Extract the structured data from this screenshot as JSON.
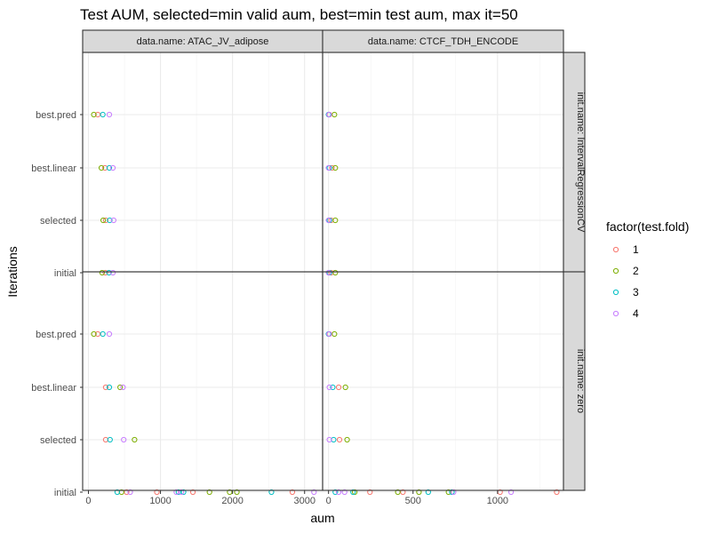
{
  "chart_data": {
    "type": "scatter",
    "title": "Test AUM, selected=min valid aum, best=min test aum, max it=50",
    "xlabel": "aum",
    "ylabel": "Iterations",
    "y_categories": [
      "initial",
      "selected",
      "best.linear",
      "best.pred"
    ],
    "facet_columns": [
      "data.name: ATAC_JV_adipose",
      "data.name: CTCF_TDH_ENCODE"
    ],
    "facet_rows": [
      "init.name: IntervalRegressionCV",
      "init.name: zero"
    ],
    "x_ticks": [
      {
        "values": [
          0,
          1000,
          2000,
          3000
        ],
        "labels": [
          "0",
          "1000",
          "2000",
          "3000"
        ],
        "xlim": [
          -80,
          3250
        ]
      },
      {
        "values": [
          0,
          500,
          1000
        ],
        "labels": [
          "0",
          "500",
          "1000"
        ],
        "xlim": [
          -35,
          1390
        ]
      }
    ],
    "grid": true,
    "legend": {
      "title": "factor(test.fold)",
      "position": "right",
      "entries": [
        {
          "label": "1",
          "color": "#F8766D"
        },
        {
          "label": "2",
          "color": "#7CAE00"
        },
        {
          "label": "3",
          "color": "#00BFC4"
        },
        {
          "label": "4",
          "color": "#C77CFF"
        }
      ]
    },
    "panels": [
      {
        "col": 0,
        "row": 0,
        "points": [
          {
            "fold": 1,
            "iteration": "best.pred",
            "aum": 130
          },
          {
            "fold": 2,
            "iteration": "best.pred",
            "aum": 75
          },
          {
            "fold": 3,
            "iteration": "best.pred",
            "aum": 200
          },
          {
            "fold": 4,
            "iteration": "best.pred",
            "aum": 290
          },
          {
            "fold": 1,
            "iteration": "best.linear",
            "aum": 230
          },
          {
            "fold": 2,
            "iteration": "best.linear",
            "aum": 180
          },
          {
            "fold": 3,
            "iteration": "best.linear",
            "aum": 290
          },
          {
            "fold": 4,
            "iteration": "best.linear",
            "aum": 340
          },
          {
            "fold": 1,
            "iteration": "selected",
            "aum": 240
          },
          {
            "fold": 2,
            "iteration": "selected",
            "aum": 205
          },
          {
            "fold": 3,
            "iteration": "selected",
            "aum": 295
          },
          {
            "fold": 4,
            "iteration": "selected",
            "aum": 350
          },
          {
            "fold": 1,
            "iteration": "initial",
            "aum": 235
          },
          {
            "fold": 2,
            "iteration": "initial",
            "aum": 190
          },
          {
            "fold": 3,
            "iteration": "initial",
            "aum": 285
          },
          {
            "fold": 4,
            "iteration": "initial",
            "aum": 340
          }
        ]
      },
      {
        "col": 1,
        "row": 0,
        "points": [
          {
            "fold": 1,
            "iteration": "best.pred",
            "aum": 5
          },
          {
            "fold": 2,
            "iteration": "best.pred",
            "aum": 35
          },
          {
            "fold": 3,
            "iteration": "best.pred",
            "aum": 0
          },
          {
            "fold": 4,
            "iteration": "best.pred",
            "aum": 3
          },
          {
            "fold": 1,
            "iteration": "best.linear",
            "aum": 20
          },
          {
            "fold": 2,
            "iteration": "best.linear",
            "aum": 40
          },
          {
            "fold": 3,
            "iteration": "best.linear",
            "aum": 5
          },
          {
            "fold": 4,
            "iteration": "best.linear",
            "aum": 0
          },
          {
            "fold": 1,
            "iteration": "selected",
            "aum": 15
          },
          {
            "fold": 2,
            "iteration": "selected",
            "aum": 40
          },
          {
            "fold": 3,
            "iteration": "selected",
            "aum": 5
          },
          {
            "fold": 4,
            "iteration": "selected",
            "aum": 0
          },
          {
            "fold": 1,
            "iteration": "initial",
            "aum": 15
          },
          {
            "fold": 2,
            "iteration": "initial",
            "aum": 40
          },
          {
            "fold": 3,
            "iteration": "initial",
            "aum": 5
          },
          {
            "fold": 4,
            "iteration": "initial",
            "aum": 0
          }
        ]
      },
      {
        "col": 0,
        "row": 1,
        "points": [
          {
            "fold": 1,
            "iteration": "best.pred",
            "aum": 130
          },
          {
            "fold": 2,
            "iteration": "best.pred",
            "aum": 75
          },
          {
            "fold": 3,
            "iteration": "best.pred",
            "aum": 200
          },
          {
            "fold": 4,
            "iteration": "best.pred",
            "aum": 290
          },
          {
            "fold": 1,
            "iteration": "best.linear",
            "aum": 240
          },
          {
            "fold": 2,
            "iteration": "best.linear",
            "aum": 440
          },
          {
            "fold": 3,
            "iteration": "best.linear",
            "aum": 290
          },
          {
            "fold": 4,
            "iteration": "best.linear",
            "aum": 480
          },
          {
            "fold": 1,
            "iteration": "selected",
            "aum": 240
          },
          {
            "fold": 2,
            "iteration": "selected",
            "aum": 640
          },
          {
            "fold": 3,
            "iteration": "selected",
            "aum": 300
          },
          {
            "fold": 4,
            "iteration": "selected",
            "aum": 490
          },
          {
            "fold": 1,
            "iteration": "initial",
            "aum": 1450
          },
          {
            "fold": 1,
            "iteration": "initial",
            "aum": 950
          },
          {
            "fold": 1,
            "iteration": "initial",
            "aum": 2830
          },
          {
            "fold": 1,
            "iteration": "initial",
            "aum": 530
          },
          {
            "fold": 2,
            "iteration": "initial",
            "aum": 460
          },
          {
            "fold": 2,
            "iteration": "initial",
            "aum": 1680
          },
          {
            "fold": 2,
            "iteration": "initial",
            "aum": 1960
          },
          {
            "fold": 2,
            "iteration": "initial",
            "aum": 2060
          },
          {
            "fold": 3,
            "iteration": "initial",
            "aum": 400
          },
          {
            "fold": 3,
            "iteration": "initial",
            "aum": 1250
          },
          {
            "fold": 3,
            "iteration": "initial",
            "aum": 1320
          },
          {
            "fold": 3,
            "iteration": "initial",
            "aum": 2540
          },
          {
            "fold": 4,
            "iteration": "initial",
            "aum": 580
          },
          {
            "fold": 4,
            "iteration": "initial",
            "aum": 1290
          },
          {
            "fold": 4,
            "iteration": "initial",
            "aum": 1220
          },
          {
            "fold": 4,
            "iteration": "initial",
            "aum": 3130
          }
        ]
      },
      {
        "col": 1,
        "row": 1,
        "points": [
          {
            "fold": 1,
            "iteration": "best.pred",
            "aum": 5
          },
          {
            "fold": 2,
            "iteration": "best.pred",
            "aum": 35
          },
          {
            "fold": 3,
            "iteration": "best.pred",
            "aum": 0
          },
          {
            "fold": 4,
            "iteration": "best.pred",
            "aum": 3
          },
          {
            "fold": 1,
            "iteration": "best.linear",
            "aum": 60
          },
          {
            "fold": 2,
            "iteration": "best.linear",
            "aum": 100
          },
          {
            "fold": 3,
            "iteration": "best.linear",
            "aum": 25
          },
          {
            "fold": 4,
            "iteration": "best.linear",
            "aum": 5
          },
          {
            "fold": 1,
            "iteration": "selected",
            "aum": 65
          },
          {
            "fold": 2,
            "iteration": "selected",
            "aum": 110
          },
          {
            "fold": 3,
            "iteration": "selected",
            "aum": 30
          },
          {
            "fold": 4,
            "iteration": "selected",
            "aum": 5
          },
          {
            "fold": 1,
            "iteration": "initial",
            "aum": 245
          },
          {
            "fold": 1,
            "iteration": "initial",
            "aum": 440
          },
          {
            "fold": 1,
            "iteration": "initial",
            "aum": 1015
          },
          {
            "fold": 1,
            "iteration": "initial",
            "aum": 1350
          },
          {
            "fold": 2,
            "iteration": "initial",
            "aum": 155
          },
          {
            "fold": 2,
            "iteration": "initial",
            "aum": 410
          },
          {
            "fold": 2,
            "iteration": "initial",
            "aum": 535
          },
          {
            "fold": 2,
            "iteration": "initial",
            "aum": 710
          },
          {
            "fold": 3,
            "iteration": "initial",
            "aum": 40
          },
          {
            "fold": 3,
            "iteration": "initial",
            "aum": 145
          },
          {
            "fold": 3,
            "iteration": "initial",
            "aum": 590
          },
          {
            "fold": 3,
            "iteration": "initial",
            "aum": 730
          },
          {
            "fold": 4,
            "iteration": "initial",
            "aum": 60
          },
          {
            "fold": 4,
            "iteration": "initial",
            "aum": 95
          },
          {
            "fold": 4,
            "iteration": "initial",
            "aum": 740
          },
          {
            "fold": 4,
            "iteration": "initial",
            "aum": 1080
          }
        ]
      }
    ]
  }
}
